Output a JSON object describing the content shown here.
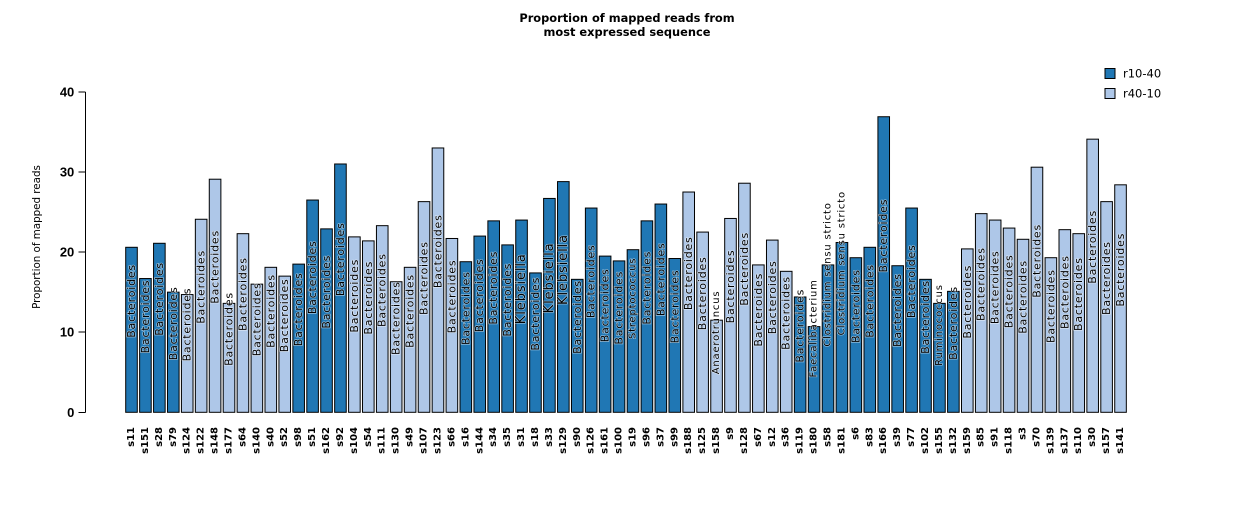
{
  "chart_data": {
    "type": "bar",
    "title_lines": [
      "Proportion of mapped reads from",
      "most expressed sequence"
    ],
    "ylabel": "Proportion of mapped reads",
    "yticks": [
      0,
      10,
      20,
      30,
      40
    ],
    "ylim": [
      0,
      40
    ],
    "grid": false,
    "legend_position": "top-right",
    "legend": [
      {
        "name": "r10-40",
        "color": "#2077b4"
      },
      {
        "name": "r40-10",
        "color": "#aec7e8"
      }
    ],
    "bar_outline_color": "#000000",
    "samples": [
      {
        "id": "s11",
        "value": 20.6,
        "group": "r10-40",
        "taxon": "Bacteroides"
      },
      {
        "id": "s151",
        "value": 16.7,
        "group": "r10-40",
        "taxon": "Bacteroides"
      },
      {
        "id": "s28",
        "value": 21.1,
        "group": "r10-40",
        "taxon": "Bacteroides"
      },
      {
        "id": "s79",
        "value": 15.0,
        "group": "r10-40",
        "taxon": "Bacteroides"
      },
      {
        "id": "s124",
        "value": 14.7,
        "group": "r40-10",
        "taxon": "Bacteroides"
      },
      {
        "id": "s122",
        "value": 24.1,
        "group": "r40-10",
        "taxon": "Bacteroides"
      },
      {
        "id": "s148",
        "value": 29.1,
        "group": "r40-10",
        "taxon": "Bacteroides"
      },
      {
        "id": "s177",
        "value": 13.6,
        "group": "r40-10",
        "taxon": "Bacteroides"
      },
      {
        "id": "s64",
        "value": 22.3,
        "group": "r40-10",
        "taxon": "Bacteroides"
      },
      {
        "id": "s140",
        "value": 16.0,
        "group": "r40-10",
        "taxon": "Bacteroides"
      },
      {
        "id": "s40",
        "value": 18.1,
        "group": "r40-10",
        "taxon": "Bacteroides"
      },
      {
        "id": "s52",
        "value": 17.0,
        "group": "r40-10",
        "taxon": "Bacteroides"
      },
      {
        "id": "s98",
        "value": 18.5,
        "group": "r10-40",
        "taxon": "Bacteroides"
      },
      {
        "id": "s51",
        "value": 26.5,
        "group": "r10-40",
        "taxon": "Bacteroides"
      },
      {
        "id": "s162",
        "value": 22.9,
        "group": "r10-40",
        "taxon": "Bacteroides"
      },
      {
        "id": "s92",
        "value": 31.0,
        "group": "r10-40",
        "taxon": "Bacteroides"
      },
      {
        "id": "s104",
        "value": 21.9,
        "group": "r40-10",
        "taxon": "Bacteroides"
      },
      {
        "id": "s54",
        "value": 21.4,
        "group": "r40-10",
        "taxon": "Bacteroides"
      },
      {
        "id": "s111",
        "value": 23.3,
        "group": "r40-10",
        "taxon": "Bacteroides"
      },
      {
        "id": "s130",
        "value": 16.3,
        "group": "r40-10",
        "taxon": "Bacteroides"
      },
      {
        "id": "s49",
        "value": 18.1,
        "group": "r40-10",
        "taxon": "Bacteroides"
      },
      {
        "id": "s107",
        "value": 26.3,
        "group": "r40-10",
        "taxon": "Bacteroides"
      },
      {
        "id": "s123",
        "value": 33.0,
        "group": "r40-10",
        "taxon": "Bacteroides"
      },
      {
        "id": "s66",
        "value": 21.7,
        "group": "r40-10",
        "taxon": "Bacteroides"
      },
      {
        "id": "s16",
        "value": 18.8,
        "group": "r10-40",
        "taxon": "Bacteroides"
      },
      {
        "id": "s144",
        "value": 22.0,
        "group": "r10-40",
        "taxon": "Bacteroides"
      },
      {
        "id": "s34",
        "value": 23.9,
        "group": "r10-40",
        "taxon": "Bacteroides"
      },
      {
        "id": "s35",
        "value": 20.9,
        "group": "r10-40",
        "taxon": "Bacteroides"
      },
      {
        "id": "s31",
        "value": 24.0,
        "group": "r10-40",
        "taxon": "Klebsiella"
      },
      {
        "id": "s18",
        "value": 17.4,
        "group": "r10-40",
        "taxon": "Bacteroides"
      },
      {
        "id": "s33",
        "value": 26.7,
        "group": "r10-40",
        "taxon": "Klebsiella"
      },
      {
        "id": "s129",
        "value": 28.8,
        "group": "r10-40",
        "taxon": "Klebsiella"
      },
      {
        "id": "s90",
        "value": 16.6,
        "group": "r10-40",
        "taxon": "Bacteroides"
      },
      {
        "id": "s126",
        "value": 25.5,
        "group": "r10-40",
        "taxon": "Bacteroides"
      },
      {
        "id": "s161",
        "value": 19.5,
        "group": "r10-40",
        "taxon": "Bacteroides"
      },
      {
        "id": "s100",
        "value": 18.9,
        "group": "r10-40",
        "taxon": "Bacteroides"
      },
      {
        "id": "s19",
        "value": 20.3,
        "group": "r10-40",
        "taxon": "Streptococcus"
      },
      {
        "id": "s96",
        "value": 23.9,
        "group": "r10-40",
        "taxon": "Bacteroides"
      },
      {
        "id": "s37",
        "value": 26.0,
        "group": "r10-40",
        "taxon": "Bacteroides"
      },
      {
        "id": "s99",
        "value": 19.2,
        "group": "r10-40",
        "taxon": "Bacteroides"
      },
      {
        "id": "s188",
        "value": 27.5,
        "group": "r40-10",
        "taxon": "Bacteroides"
      },
      {
        "id": "s125",
        "value": 22.5,
        "group": "r40-10",
        "taxon": "Bacteroides"
      },
      {
        "id": "s158",
        "value": 11.5,
        "group": "r40-10",
        "taxon": "Anaerotruncus"
      },
      {
        "id": "s9",
        "value": 24.2,
        "group": "r40-10",
        "taxon": "Bacteroides"
      },
      {
        "id": "s128",
        "value": 28.6,
        "group": "r40-10",
        "taxon": "Bacteroides"
      },
      {
        "id": "s67",
        "value": 18.4,
        "group": "r40-10",
        "taxon": "Bacteroides"
      },
      {
        "id": "s12",
        "value": 21.5,
        "group": "r40-10",
        "taxon": "Bacteroides"
      },
      {
        "id": "s36",
        "value": 17.6,
        "group": "r40-10",
        "taxon": "Bacteroides"
      },
      {
        "id": "s119",
        "value": 14.4,
        "group": "r10-40",
        "taxon": "Bacteroides"
      },
      {
        "id": "s180",
        "value": 10.7,
        "group": "r10-40",
        "taxon": "Faecalibacterium"
      },
      {
        "id": "s58",
        "value": 18.4,
        "group": "r10-40",
        "taxon": "Clostridium sensu stricto"
      },
      {
        "id": "s181",
        "value": 21.2,
        "group": "r10-40",
        "taxon": "Clostridium sensu stricto"
      },
      {
        "id": "s6",
        "value": 19.3,
        "group": "r10-40",
        "taxon": "Bacteroides"
      },
      {
        "id": "s83",
        "value": 20.6,
        "group": "r10-40",
        "taxon": "Bacteroides"
      },
      {
        "id": "s166",
        "value": 36.9,
        "group": "r10-40",
        "taxon": "Bacteroides"
      },
      {
        "id": "s39",
        "value": 18.3,
        "group": "r10-40",
        "taxon": "Bacteroides"
      },
      {
        "id": "s77",
        "value": 25.5,
        "group": "r10-40",
        "taxon": "Bacteroides"
      },
      {
        "id": "s102",
        "value": 16.6,
        "group": "r10-40",
        "taxon": "Bacteroides"
      },
      {
        "id": "s155",
        "value": 13.6,
        "group": "r10-40",
        "taxon": "Ruminococcus"
      },
      {
        "id": "s132",
        "value": 15.1,
        "group": "r10-40",
        "taxon": "Bacteroides"
      },
      {
        "id": "s159",
        "value": 20.4,
        "group": "r40-10",
        "taxon": "Bacteroides"
      },
      {
        "id": "s85",
        "value": 24.8,
        "group": "r40-10",
        "taxon": "Bacteroides"
      },
      {
        "id": "s91",
        "value": 24.0,
        "group": "r40-10",
        "taxon": "Bacteroides"
      },
      {
        "id": "s118",
        "value": 23.0,
        "group": "r40-10",
        "taxon": "Bacteroides"
      },
      {
        "id": "s3",
        "value": 21.6,
        "group": "r40-10",
        "taxon": "Bacteroides"
      },
      {
        "id": "s70",
        "value": 30.6,
        "group": "r40-10",
        "taxon": "Bacteroides"
      },
      {
        "id": "s139",
        "value": 19.3,
        "group": "r40-10",
        "taxon": "Bacteroides"
      },
      {
        "id": "s137",
        "value": 22.8,
        "group": "r40-10",
        "taxon": "Bacteroides"
      },
      {
        "id": "s110",
        "value": 22.3,
        "group": "r40-10",
        "taxon": "Bacteroides"
      },
      {
        "id": "s30",
        "value": 34.1,
        "group": "r40-10",
        "taxon": "Bacteroides"
      },
      {
        "id": "s157",
        "value": 26.3,
        "group": "r40-10",
        "taxon": "Bacteroides"
      },
      {
        "id": "s141",
        "value": 28.4,
        "group": "r40-10",
        "taxon": "Bacteroides"
      }
    ]
  }
}
